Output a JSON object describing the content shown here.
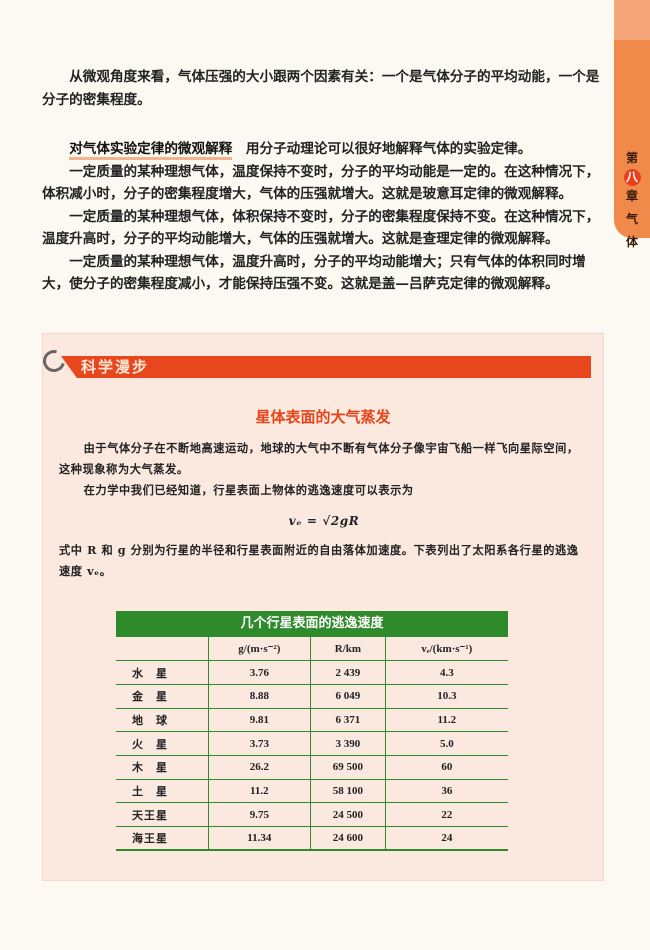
{
  "chapter_tab": {
    "prefix": "第",
    "number": "八",
    "suffix": "章",
    "title": [
      "气",
      "体"
    ],
    "color": "#f08a4b"
  },
  "main": {
    "p1": "从微观角度来看，气体压强的大小跟两个因素有关：一个是气体分子的平均动能，一个是分子的密集程度。",
    "heading": "对气体实验定律的微观解释",
    "heading_text": "　用分子动理论可以很好地解释气体的实验定律。",
    "p2": "一定质量的某种理想气体，温度保持不变时，分子的平均动能是一定的。在这种情况下，体积减小时，分子的密集程度增大，气体的压强就增大。这就是玻意耳定律的微观解释。",
    "p3": "一定质量的某种理想气体，体积保持不变时，分子的密集程度保持不变。在这种情况下，温度升高时，分子的平均动能增大，气体的压强就增大。这就是查理定律的微观解释。",
    "p4": "一定质量的某种理想气体，温度升高时，分子的平均动能增大；只有气体的体积同时增大，使分子的密集程度减小，才能保持压强不变。这就是盖—吕萨克定律的微观解释。"
  },
  "box": {
    "banner": "科学漫步",
    "title": "星体表面的大气蒸发",
    "p1": "由于气体分子在不断地高速运动，地球的大气中不断有气体分子像宇宙飞船一样飞向星际空间，这种现象称为大气蒸发。",
    "p2": "在力学中我们已经知道，行星表面上物体的逃逸速度可以表示为",
    "formula": "vₑ = √2gR",
    "p3": "式中 R 和 g 分别为行星的半径和行星表面附近的自由落体加速度。下表列出了太阳系各行星的逃逸速度 vₑ。"
  },
  "table": {
    "caption": "几个行星表面的逃逸速度",
    "headers": [
      "",
      "g/(m·s⁻²)",
      "R/km",
      "vₑ/(km·s⁻¹)"
    ],
    "rows": [
      [
        "水　星",
        "3.76",
        "2 439",
        "4.3"
      ],
      [
        "金　星",
        "8.88",
        "6 049",
        "10.3"
      ],
      [
        "地　球",
        "9.81",
        "6 371",
        "11.2"
      ],
      [
        "火　星",
        "3.73",
        "3 390",
        "5.0"
      ],
      [
        "木　星",
        "26.2",
        "69 500",
        "60"
      ],
      [
        "土　星",
        "11.2",
        "58 100",
        "36"
      ],
      [
        "天王星",
        "9.75",
        "24 500",
        "22"
      ],
      [
        "海王星",
        "11.34",
        "24 600",
        "24"
      ]
    ]
  }
}
